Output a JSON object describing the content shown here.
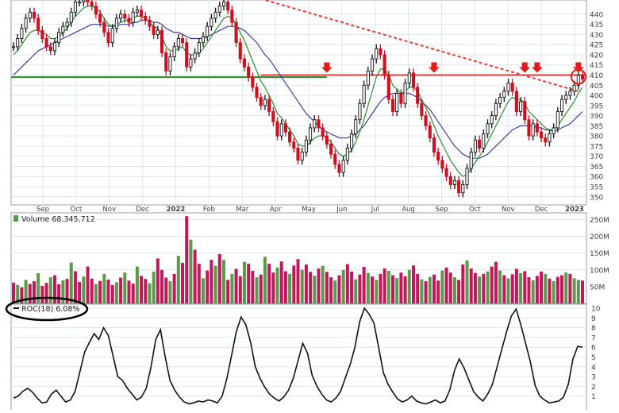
{
  "chart_data": [
    {
      "type": "line",
      "panel": "price",
      "x_ticks": [
        "Sep",
        "Oct",
        "Nov",
        "Dec",
        "2022",
        "Feb",
        "Mar",
        "Apr",
        "May",
        "Jun",
        "Jul",
        "Aug",
        "Sep",
        "Oct",
        "Nov",
        "Dec",
        "2023"
      ],
      "y_ticks": [
        "440",
        "435",
        "430",
        "425",
        "420",
        "415",
        "410",
        "405",
        "400",
        "395",
        "390",
        "385",
        "380",
        "375",
        "370",
        "365",
        "360",
        "355",
        "350"
      ],
      "ylim": [
        346,
        447
      ],
      "grid": true,
      "series": [
        {
          "key": "close",
          "color": "#cc1122",
          "values": [
            424,
            428,
            433,
            438,
            441,
            438,
            432,
            428,
            424,
            422,
            426,
            431,
            434,
            436,
            441,
            446,
            446,
            447,
            446,
            444,
            440,
            436,
            431,
            426,
            433,
            438,
            440,
            438,
            436,
            441,
            442,
            439,
            437,
            434,
            430,
            432,
            421,
            412,
            419,
            424,
            428,
            426,
            414,
            418,
            421,
            426,
            429,
            434,
            438,
            441,
            444,
            446,
            442,
            436,
            426,
            418,
            414,
            409,
            404,
            399,
            395,
            398,
            392,
            387,
            380,
            386,
            382,
            377,
            374,
            368,
            372,
            378,
            384,
            388,
            384,
            380,
            376,
            371,
            366,
            362,
            368,
            374,
            381,
            388,
            396,
            405,
            412,
            418,
            423,
            420,
            410,
            398,
            392,
            401,
            396,
            406,
            411,
            404,
            396,
            390,
            385,
            379,
            372,
            368,
            364,
            360,
            356,
            358,
            352,
            356,
            364,
            372,
            378,
            374,
            381,
            386,
            390,
            396,
            399,
            402,
            406,
            402,
            392,
            397,
            388,
            380,
            386,
            382,
            379,
            377,
            381,
            384,
            392,
            398,
            400,
            402,
            405,
            410,
            408
          ]
        },
        {
          "key": "ma_short",
          "color": "#2e8b2e",
          "values": [
            420,
            422,
            425,
            428,
            431,
            432,
            432,
            431,
            430,
            428,
            428,
            429,
            431,
            433,
            436,
            439,
            441,
            443,
            444,
            444,
            443,
            441,
            438,
            435,
            434,
            435,
            436,
            437,
            437,
            438,
            439,
            439,
            438,
            436,
            434,
            433,
            429,
            424,
            422,
            422,
            423,
            424,
            421,
            420,
            420,
            421,
            423,
            426,
            429,
            432,
            435,
            438,
            439,
            438,
            435,
            431,
            427,
            422,
            417,
            412,
            407,
            404,
            400,
            396,
            391,
            389,
            386,
            383,
            380,
            376,
            375,
            375,
            377,
            379,
            380,
            380,
            379,
            377,
            374,
            371,
            370,
            371,
            373,
            377,
            382,
            388,
            395,
            402,
            409,
            413,
            413,
            410,
            405,
            403,
            401,
            402,
            404,
            404,
            402,
            398,
            394,
            390,
            385,
            380,
            376,
            372,
            368,
            365,
            362,
            360,
            361,
            364,
            367,
            370,
            373,
            377,
            381,
            385,
            389,
            393,
            397,
            399,
            398,
            398,
            396,
            392,
            390,
            388,
            386,
            384,
            383,
            383,
            385,
            388,
            391,
            394,
            397,
            401,
            404
          ]
        },
        {
          "key": "ma_long",
          "color": "#3c3c96",
          "values": [
            410,
            412,
            414,
            416,
            418,
            420,
            422,
            423,
            424,
            425,
            426,
            427,
            428,
            429,
            430,
            431,
            432,
            433,
            434,
            435,
            435,
            435,
            435,
            434,
            434,
            434,
            435,
            435,
            435,
            436,
            436,
            437,
            437,
            437,
            436,
            436,
            435,
            433,
            432,
            431,
            431,
            430,
            429,
            428,
            428,
            428,
            428,
            429,
            430,
            431,
            432,
            433,
            434,
            434,
            434,
            433,
            432,
            430,
            428,
            426,
            423,
            420,
            418,
            415,
            412,
            409,
            406,
            403,
            400,
            397,
            394,
            391,
            389,
            387,
            385,
            383,
            382,
            381,
            380,
            379,
            379,
            379,
            380,
            381,
            383,
            385,
            388,
            391,
            394,
            397,
            399,
            400,
            401,
            401,
            401,
            401,
            401,
            400,
            399,
            397,
            395,
            393,
            390,
            387,
            384,
            381,
            378,
            375,
            373,
            371,
            370,
            369,
            369,
            369,
            370,
            371,
            373,
            375,
            377,
            379,
            381,
            383,
            384,
            385,
            385,
            385,
            385,
            384,
            384,
            383,
            383,
            382,
            383,
            384,
            385,
            386,
            388,
            390,
            392
          ]
        }
      ],
      "annotations": {
        "support_level": 409,
        "resistance_level": 410,
        "trendline_start": {
          "index": 56,
          "value": 450
        },
        "trendline_end": {
          "index": 137,
          "value": 402
        },
        "arrow_indices": [
          76,
          102,
          124,
          127,
          137
        ],
        "circle_index": 137
      }
    },
    {
      "type": "bar",
      "panel": "volume",
      "legend": "Volume 68,345,712",
      "y_ticks": [
        "250M",
        "200M",
        "150M",
        "100M",
        "50M"
      ],
      "ylim": [
        0,
        270
      ],
      "up_color": "#5a9a4a",
      "down_color": "#c2185b",
      "values": [
        62,
        55,
        48,
        70,
        58,
        66,
        90,
        52,
        61,
        78,
        84,
        57,
        69,
        73,
        122,
        96,
        64,
        80,
        110,
        74,
        58,
        67,
        88,
        71,
        55,
        63,
        77,
        92,
        68,
        59,
        110,
        82,
        73,
        60,
        95,
        134,
        100,
        77,
        66,
        88,
        142,
        121,
        260,
        190,
        160,
        118,
        75,
        98,
        130,
        112,
        147,
        130,
        70,
        88,
        103,
        81,
        124,
        118,
        97,
        78,
        86,
        139,
        118,
        92,
        107,
        125,
        96,
        88,
        113,
        132,
        100,
        116,
        94,
        83,
        104,
        112,
        94,
        78,
        68,
        84,
        100,
        117,
        95,
        72,
        86,
        109,
        91,
        80,
        70,
        88,
        104,
        97,
        84,
        76,
        92,
        81,
        100,
        113,
        88,
        72,
        66,
        79,
        86,
        68,
        98,
        107,
        92,
        78,
        70,
        116,
        128,
        104,
        91,
        80,
        88,
        95,
        110,
        124,
        98,
        84,
        75,
        87,
        103,
        90,
        96,
        78,
        69,
        82,
        95,
        88,
        74,
        66,
        79,
        84,
        92,
        88,
        75,
        70,
        68
      ],
      "up_days": [
        1,
        3,
        6,
        9,
        12,
        14,
        17,
        20,
        22,
        25,
        27,
        30,
        33,
        34,
        38,
        40,
        43,
        46,
        49,
        51,
        53,
        56,
        59,
        61,
        64,
        67,
        70,
        73,
        75,
        78,
        80,
        83,
        86,
        88,
        91,
        93,
        96,
        99,
        101,
        104,
        107,
        110,
        113,
        115,
        118,
        120,
        123,
        126,
        129,
        131,
        134,
        136,
        137
      ]
    },
    {
      "type": "line",
      "panel": "roc",
      "legend": "ROC(18) 6.08%",
      "y_ticks": [
        "10",
        "9",
        "8",
        "7",
        "6",
        "5",
        "4",
        "3",
        "2",
        "1"
      ],
      "ylim": [
        0,
        10
      ],
      "color": "#111111",
      "values": [
        0.8,
        1.0,
        1.5,
        1.8,
        1.4,
        0.8,
        0.3,
        0.4,
        1.2,
        1.6,
        1.0,
        0.4,
        0.6,
        1.5,
        3.5,
        5.5,
        6.5,
        7.4,
        6.8,
        8.0,
        7.2,
        5.1,
        3.0,
        2.6,
        1.8,
        1.2,
        0.6,
        0.9,
        1.8,
        4.0,
        6.8,
        7.8,
        5.0,
        2.6,
        1.6,
        0.9,
        0.4,
        0.2,
        0.3,
        0.5,
        0.4,
        0.6,
        0.5,
        0.3,
        1.0,
        2.8,
        5.2,
        7.6,
        9.1,
        8.3,
        6.5,
        4.0,
        2.8,
        1.9,
        1.2,
        0.8,
        0.5,
        0.9,
        1.6,
        2.8,
        4.6,
        6.4,
        5.4,
        3.1,
        2.0,
        1.2,
        0.6,
        0.4,
        0.8,
        1.5,
        2.9,
        4.2,
        6.0,
        8.6,
        10.0,
        9.4,
        8.5,
        6.0,
        3.4,
        2.2,
        1.4,
        0.7,
        0.4,
        0.6,
        1.0,
        0.5,
        0.3,
        0.2,
        0.4,
        0.6,
        0.3,
        0.5,
        1.6,
        3.6,
        4.8,
        3.9,
        2.7,
        1.5,
        0.9,
        0.5,
        1.2,
        2.2,
        4.0,
        5.8,
        7.6,
        9.2,
        9.9,
        8.3,
        6.4,
        4.5,
        2.1,
        1.0,
        0.6,
        0.3,
        0.4,
        0.5,
        0.9,
        2.2,
        4.8,
        6.1,
        6.0
      ]
    }
  ],
  "chart_colors": {
    "background": "#ffffff",
    "grid": "#dde6ee",
    "axis_text": "#404040",
    "panel_border": "#9aa0a6",
    "support_line": "#1f8a2e",
    "resistance_line": "#e23b3b",
    "trendline": "#e23b3b",
    "arrow": "#e41b1b",
    "legend_ellipse": "#000000"
  }
}
